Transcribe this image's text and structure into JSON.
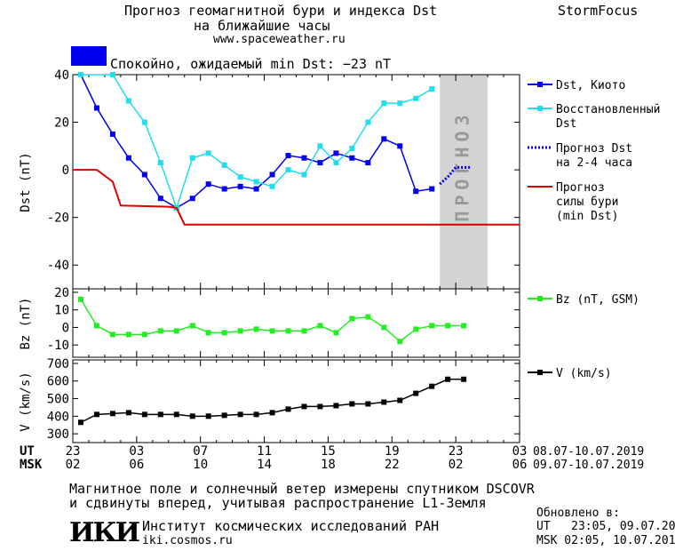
{
  "header": {
    "title_line1": "Прогноз геомагнитной бури и индекса Dst",
    "title_line2": "на ближайшие часы",
    "site": "www.spaceweather.ru",
    "brand": "StormFocus"
  },
  "status": {
    "text": "Спокойно, ожидаемый min Dst: −23 nT",
    "color": "#0000ee"
  },
  "colors": {
    "dst": "#0000ee",
    "recovered": "#22ddee",
    "forecast_dst": "#0000ee",
    "storm": "#dd0000",
    "bz": "#22ee22",
    "v": "#000000",
    "forecast_zone": "#d4d4d4",
    "forecast_text": "#999999"
  },
  "forecast_zone_label": "ПРОГНОЗ",
  "legend": {
    "dst": "Dst, Киото",
    "recovered_1": "Восстановленный",
    "recovered_2": "Dst",
    "forecast_1": "Прогноз Dst",
    "forecast_2": "на 2-4 часа",
    "storm_1": "Прогноз",
    "storm_2": "силы бури",
    "storm_3": "(min Dst)",
    "bz": "Bz (nT, GSM)",
    "v": "V (km/s)"
  },
  "chart_data": [
    {
      "type": "line",
      "ylabel": "Dst (nT)",
      "ylim": [
        -50,
        40
      ],
      "yticks": [
        40,
        20,
        0,
        -20,
        -40
      ],
      "xlim": [
        0,
        28
      ],
      "forecast_zone": [
        23,
        26
      ],
      "series": [
        {
          "name": "Dst, Киото",
          "color": "#0000ee",
          "x": [
            0.5,
            1.5,
            2.5,
            3.5,
            4.5,
            5.5,
            6.5,
            7.5,
            8.5,
            9.5,
            10.5,
            11.5,
            12.5,
            13.5,
            14.5,
            15.5,
            16.5,
            17.5,
            18.5,
            19.5,
            20.5,
            21.5,
            22.5
          ],
          "values": [
            40,
            26,
            15,
            5,
            -2,
            -12,
            -16,
            -12,
            -6,
            -8,
            -7,
            -8,
            -2,
            6,
            5,
            3,
            7,
            5,
            3,
            13,
            10,
            -9,
            -8
          ]
        },
        {
          "name": "Восстановленный Dst",
          "color": "#22ddee",
          "x": [
            0.5,
            2.5,
            3.5,
            4.5,
            5.5,
            6.5,
            7.5,
            8.5,
            9.5,
            10.5,
            11.5,
            12.5,
            13.5,
            14.5,
            15.5,
            16.5,
            17.5,
            18.5,
            19.5,
            20.5,
            21.5,
            22.5
          ],
          "values": [
            40,
            40,
            29,
            20,
            3,
            -16,
            5,
            7,
            2,
            -3,
            -5,
            -7,
            0,
            -2,
            10,
            3,
            9,
            20,
            28,
            28,
            30,
            34
          ]
        },
        {
          "name": "Прогноз Dst на 2-4 часа",
          "color": "#0000ee",
          "x": [
            23.0,
            23.5,
            24.0,
            24.5,
            25.0
          ],
          "values": [
            -6,
            -3,
            1,
            1,
            1
          ]
        },
        {
          "name": "Прогноз силы бури (min Dst)",
          "color": "#dd0000",
          "x": [
            0,
            1.5,
            2.5,
            3.0,
            6.0,
            6.5,
            7.0,
            28
          ],
          "values": [
            0,
            0,
            -5,
            -15,
            -15.5,
            -16,
            -23,
            -23
          ]
        }
      ]
    },
    {
      "type": "line",
      "ylabel": "Bz (nT)",
      "ylim": [
        -17,
        22
      ],
      "yticks": [
        20,
        10,
        0,
        -10
      ],
      "xlim": [
        0,
        28
      ],
      "series": [
        {
          "name": "Bz (nT, GSM)",
          "color": "#22ee22",
          "x": [
            0.5,
            1.5,
            2.5,
            3.5,
            4.5,
            5.5,
            6.5,
            7.5,
            8.5,
            9.5,
            10.5,
            11.5,
            12.5,
            13.5,
            14.5,
            15.5,
            16.5,
            17.5,
            18.5,
            19.5,
            20.5,
            21.5,
            22.5,
            23.5,
            24.5
          ],
          "values": [
            16,
            1,
            -4,
            -4,
            -4,
            -2,
            -2,
            1,
            -3,
            -3,
            -2,
            -1,
            -2,
            -2,
            -2,
            1,
            -3,
            5,
            6,
            0,
            -8,
            -1,
            1,
            1,
            1
          ]
        }
      ]
    },
    {
      "type": "line",
      "ylabel": "V (km/s)",
      "ylim": [
        250,
        720
      ],
      "yticks": [
        700,
        600,
        500,
        400,
        300
      ],
      "xlim": [
        0,
        28
      ],
      "series": [
        {
          "name": "V (km/s)",
          "color": "#000000",
          "x": [
            0.5,
            1.5,
            2.5,
            3.5,
            4.5,
            5.5,
            6.5,
            7.5,
            8.5,
            9.5,
            10.5,
            11.5,
            12.5,
            13.5,
            14.5,
            15.5,
            16.5,
            17.5,
            18.5,
            19.5,
            20.5,
            21.5,
            22.5,
            23.5,
            24.5
          ],
          "values": [
            365,
            410,
            415,
            420,
            410,
            410,
            410,
            400,
            400,
            405,
            410,
            410,
            420,
            440,
            455,
            455,
            460,
            470,
            470,
            480,
            490,
            530,
            570,
            610,
            610
          ]
        }
      ]
    }
  ],
  "time_axis": {
    "ut_label": "UT",
    "msk_label": "MSK",
    "ut_ticks": [
      "23",
      "03",
      "07",
      "11",
      "15",
      "19",
      "23",
      "03"
    ],
    "msk_ticks": [
      "02",
      "06",
      "10",
      "14",
      "18",
      "22",
      "02",
      "06"
    ],
    "tick_positions": [
      0,
      4,
      8,
      12,
      16,
      20,
      24,
      28
    ],
    "ut_range": "08.07-10.07.2019",
    "msk_range": "09.07-10.07.2019"
  },
  "footer": {
    "note_line1": "Магнитное поле и солнечный ветер измерены спутником DSCOVR",
    "note_line2": "и сдвинуты вперед, учитывая распространение L1-Земля",
    "logo": "ИКИ",
    "institute": "Институт космических исследований РАН",
    "institute_site": "iki.cosmos.ru",
    "updated_label": "Обновлено в:",
    "updated_ut": "UT   23:05, 09.07.2019",
    "updated_msk": "MSK 02:05, 10.07.2019"
  }
}
